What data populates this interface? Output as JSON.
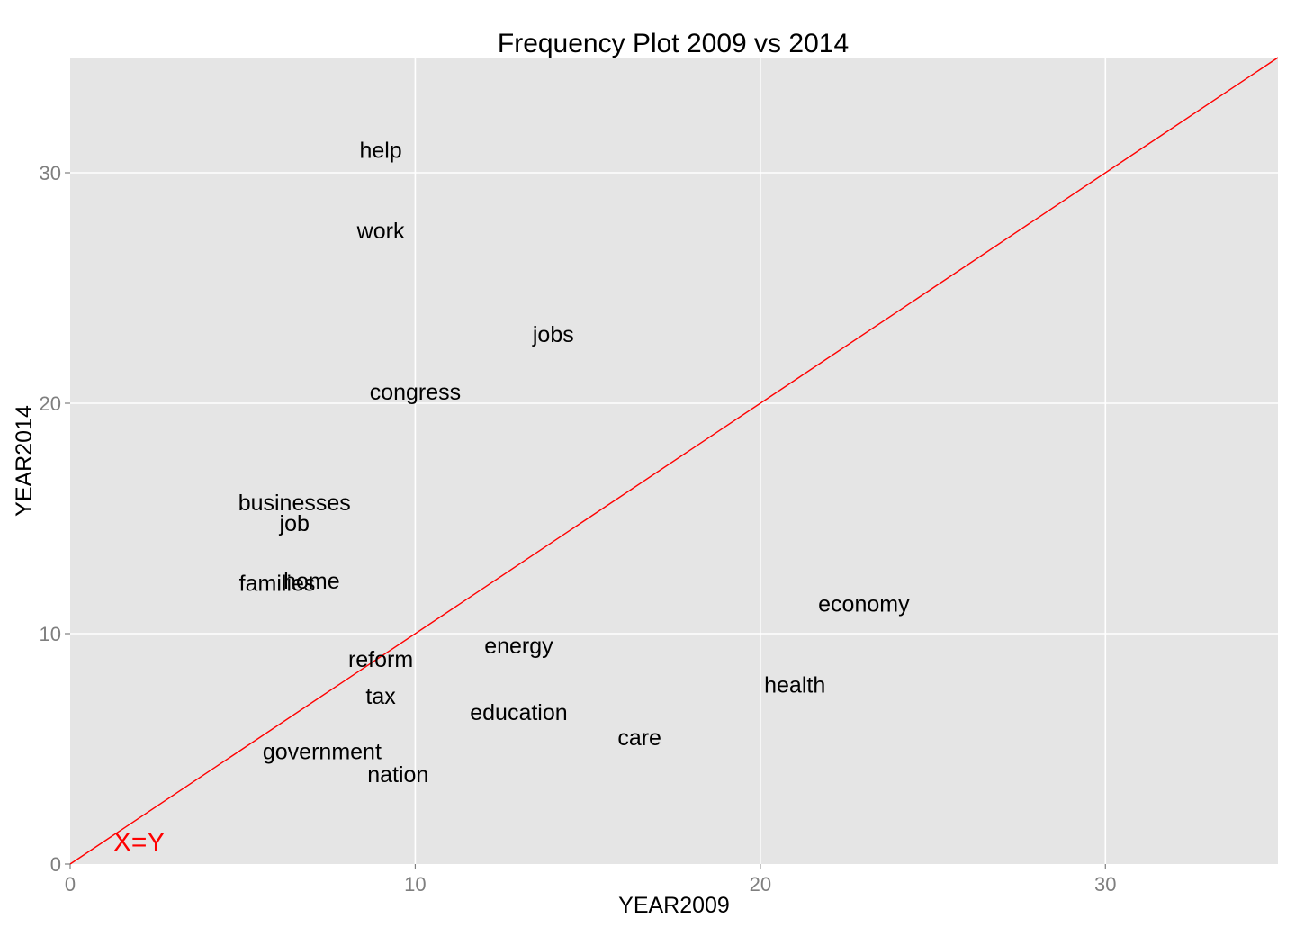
{
  "chart_data": {
    "type": "scatter",
    "title": "Frequency Plot 2009 vs 2014",
    "xlabel": "YEAR2009",
    "ylabel": "YEAR2014",
    "xlim": [
      0,
      35
    ],
    "ylim": [
      0,
      35
    ],
    "x_ticks": [
      0,
      10,
      20,
      30
    ],
    "y_ticks": [
      0,
      10,
      20,
      30
    ],
    "grid": true,
    "marker": "text",
    "points": [
      {
        "label": "help",
        "x": 9,
        "y": 31
      },
      {
        "label": "work",
        "x": 9,
        "y": 27.5
      },
      {
        "label": "jobs",
        "x": 14,
        "y": 23
      },
      {
        "label": "congress",
        "x": 10,
        "y": 20.5
      },
      {
        "label": "businesses",
        "x": 6.5,
        "y": 15.7
      },
      {
        "label": "job",
        "x": 6.5,
        "y": 14.8
      },
      {
        "label": "home",
        "x": 7,
        "y": 12.3
      },
      {
        "label": "families",
        "x": 6,
        "y": 12.2
      },
      {
        "label": "economy",
        "x": 23,
        "y": 11.3
      },
      {
        "label": "energy",
        "x": 13,
        "y": 9.5
      },
      {
        "label": "reform",
        "x": 9,
        "y": 8.9
      },
      {
        "label": "health",
        "x": 21,
        "y": 7.8
      },
      {
        "label": "tax",
        "x": 9,
        "y": 7.3
      },
      {
        "label": "education",
        "x": 13,
        "y": 6.6
      },
      {
        "label": "care",
        "x": 16.5,
        "y": 5.5
      },
      {
        "label": "government",
        "x": 7.3,
        "y": 4.9
      },
      {
        "label": "nation",
        "x": 9.5,
        "y": 3.9
      }
    ],
    "reference_line": {
      "label": "X=Y",
      "slope": 1,
      "intercept": 0,
      "color": "#ff0000",
      "label_x": 2,
      "label_y": 1
    }
  },
  "colors": {
    "panel_background": "#e5e5e5",
    "grid": "#ffffff",
    "reference_line": "#ff0000",
    "tick_label": "#7f7f7f",
    "text": "#000000"
  }
}
